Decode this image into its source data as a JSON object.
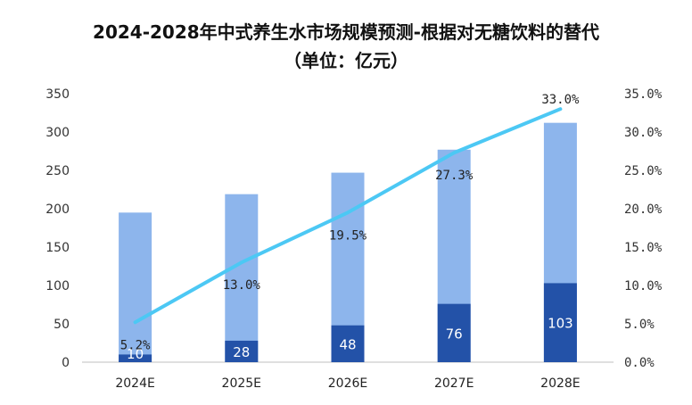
{
  "chart_data": {
    "type": "bar",
    "title": "2024-2028年中式养生水市场规模预测-根据对无糖饮料的替代",
    "subtitle": "（单位：亿元）",
    "categories": [
      "2024E",
      "2025E",
      "2026E",
      "2027E",
      "2028E"
    ],
    "series": [
      {
        "kind": "bar-total",
        "values": [
          195,
          219,
          247,
          277,
          312
        ],
        "color": "#8db5ec"
      },
      {
        "kind": "bar-inner",
        "values": [
          10,
          28,
          48,
          76,
          103
        ],
        "labels": [
          "10",
          "28",
          "48",
          "76",
          "103"
        ],
        "color": "#2352a8"
      },
      {
        "kind": "line",
        "axis": "right",
        "values": [
          5.2,
          13.0,
          19.5,
          27.3,
          33.0
        ],
        "labels": [
          "5.2%",
          "13.0%",
          "19.5%",
          "27.3%",
          "33.0%"
        ],
        "color": "#4cc8f4"
      }
    ],
    "y_left": {
      "ylim": [
        0,
        350
      ],
      "ticks": [
        "0",
        "50",
        "100",
        "150",
        "200",
        "250",
        "300",
        "350"
      ]
    },
    "y_right": {
      "ylim": [
        0,
        35
      ],
      "ticks": [
        "0.0%",
        "5.0%",
        "10.0%",
        "15.0%",
        "20.0%",
        "25.0%",
        "30.0%",
        "35.0%"
      ]
    },
    "grid": false,
    "legend": "none"
  }
}
